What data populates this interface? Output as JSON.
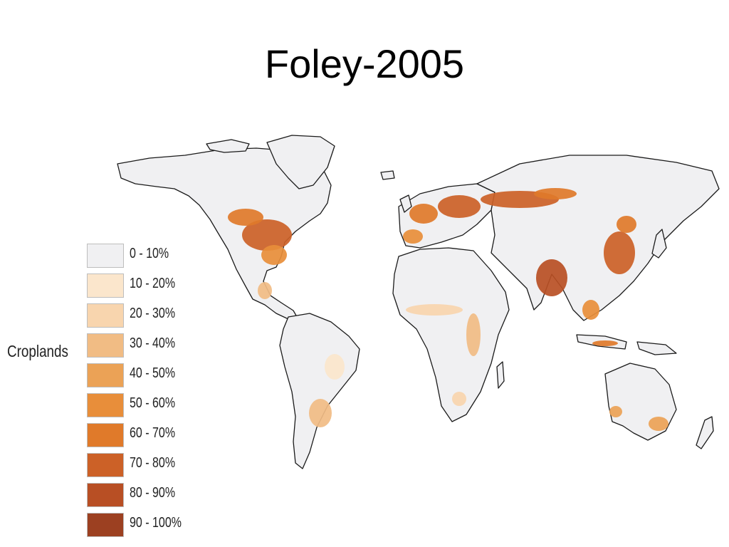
{
  "title": "Foley-2005",
  "legend": {
    "title": "Croplands",
    "items": [
      {
        "label": "0 - 10%",
        "color": "#f0f0f2"
      },
      {
        "label": "10 - 20%",
        "color": "#fbe6cc"
      },
      {
        "label": "20 - 30%",
        "color": "#f8d5ae"
      },
      {
        "label": "30 - 40%",
        "color": "#f1bc84"
      },
      {
        "label": "40 - 50%",
        "color": "#eba256"
      },
      {
        "label": "50 - 60%",
        "color": "#e88e3a"
      },
      {
        "label": "60 - 70%",
        "color": "#e07a2a"
      },
      {
        "label": "70 - 80%",
        "color": "#cc6127"
      },
      {
        "label": "80 - 90%",
        "color": "#b84f24"
      },
      {
        "label": "90 - 100%",
        "color": "#9c4021"
      }
    ]
  },
  "map": {
    "land_color": "#f0f0f2",
    "outline_color": "#1a1a1a"
  }
}
